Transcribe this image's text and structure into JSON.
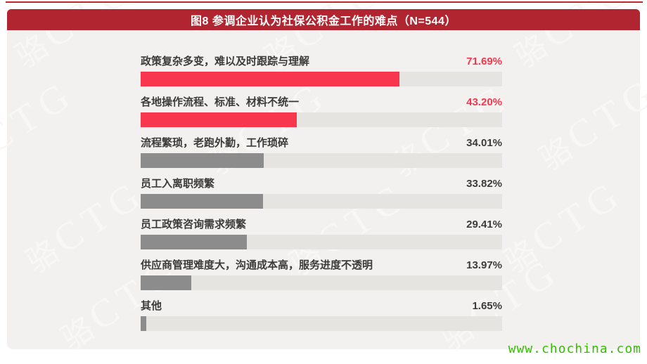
{
  "header": {
    "title": "图8 参调企业认为社保公积金工作的难点（N=544）"
  },
  "watermark": {
    "glyph": "骆",
    "letters": "CTG"
  },
  "footer": {
    "url": "www.chochina.com"
  },
  "colors": {
    "banner_red": "#B0252F",
    "top_line_red": "#C1272D",
    "accent_red": "#F8364E",
    "bar_gray": "#8C8C8C",
    "track_gray": "#E6E4E1",
    "panel_bg": "#F2F1EF",
    "text_dark": "#3B3B3B",
    "footer_green": "#33BF00"
  },
  "chart_data": {
    "type": "bar",
    "orientation": "horizontal",
    "title": "图8 参调企业认为社保公积金工作的难点（N=544）",
    "sample_size_label": "N=544",
    "categories": [
      "政策复杂多变，难以及时跟踪与理解",
      "各地操作流程、标准、材料不统一",
      "流程繁琐，老跑外勤，工作琐碎",
      "员工入离职频繁",
      "员工政策咨询需求频繁",
      "供应商管理难度大，沟通成本高，服务进度不透明",
      "其他"
    ],
    "values": [
      71.69,
      43.2,
      34.01,
      33.82,
      29.41,
      13.97,
      1.65
    ],
    "value_labels": [
      "71.69%",
      "43.20%",
      "34.01%",
      "33.82%",
      "29.41%",
      "13.97%",
      "1.65%"
    ],
    "highlighted": [
      true,
      true,
      false,
      false,
      false,
      false,
      false
    ],
    "xlim": [
      0,
      100
    ],
    "grid": false,
    "legend": false
  }
}
